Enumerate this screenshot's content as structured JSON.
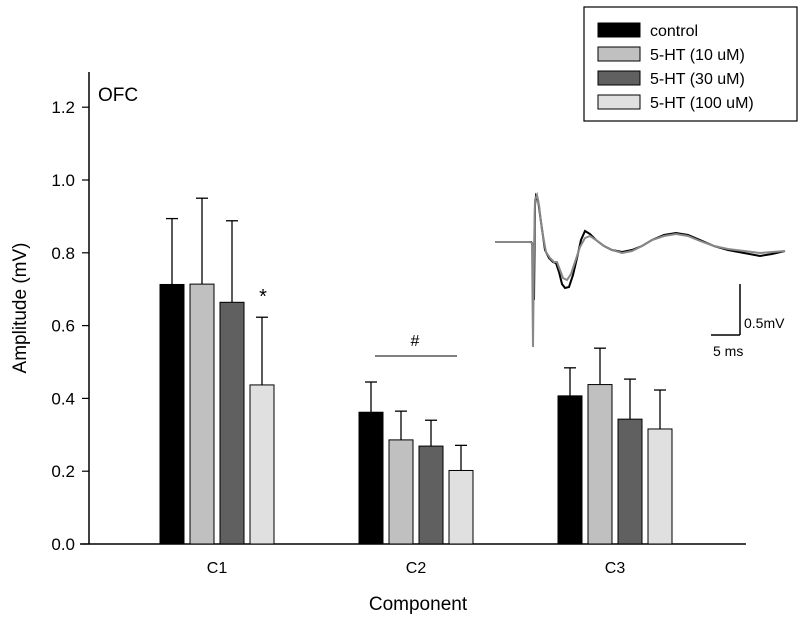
{
  "chart_data": {
    "type": "bar",
    "title": "OFC",
    "xlabel": "Component",
    "ylabel": "Amplitude (mV)",
    "ylim": [
      0,
      1.3
    ],
    "yticks": [
      "0.0",
      "0.2",
      "0.4",
      "0.6",
      "0.8",
      "1.0",
      "1.2"
    ],
    "categories": [
      "C1",
      "C2",
      "C3"
    ],
    "series": [
      {
        "name": "control",
        "color": "#000000",
        "values": [
          0.713,
          0.362,
          0.407
        ],
        "error": [
          0.181,
          0.083,
          0.077
        ]
      },
      {
        "name": "5-HT (10 uM)",
        "color": "#c0c0c0",
        "values": [
          0.714,
          0.286,
          0.438
        ],
        "error": [
          0.236,
          0.079,
          0.1
        ]
      },
      {
        "name": "5-HT (30 uM)",
        "color": "#606060",
        "values": [
          0.664,
          0.269,
          0.343
        ],
        "error": [
          0.224,
          0.071,
          0.11
        ]
      },
      {
        "name": "5-HT (100 uM)",
        "color": "#e0e0e0",
        "values": [
          0.437,
          0.202,
          0.316
        ],
        "error": [
          0.186,
          0.069,
          0.107
        ]
      }
    ],
    "annotations": [
      {
        "text": "*",
        "category": "C1",
        "series": "5-HT (100 uM)"
      },
      {
        "text": "#",
        "category": "C2",
        "type": "bracket over all series"
      }
    ],
    "legend": {
      "placement": "top-right"
    },
    "grid": false,
    "inset": {
      "description_labels": {
        "voltage_scale": "0.5mV",
        "time_scale": "5 ms"
      },
      "trace_colors": {
        "control": "#000000",
        "treated": "#808080"
      }
    }
  }
}
